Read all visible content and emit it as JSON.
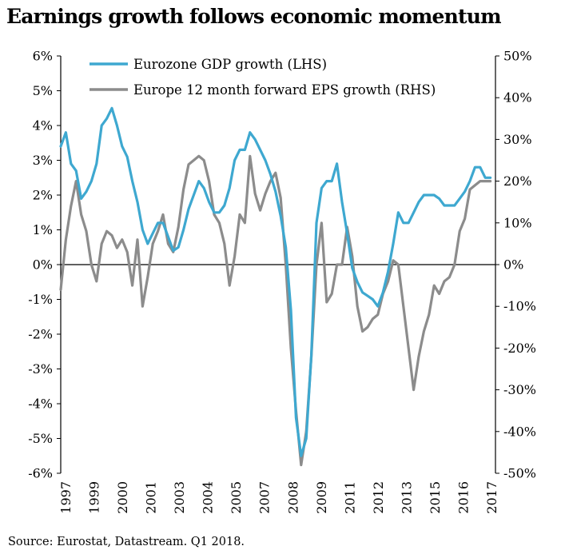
{
  "title": "Earnings growth follows economic momentum",
  "source": "Source: Eurostat, Datastream. Q1 2018.",
  "colors": {
    "gdp": "#3ea8d0",
    "eps": "#8c8c8c",
    "axis": "#000000"
  },
  "chart_data": {
    "type": "line",
    "title": "Earnings growth follows economic momentum",
    "x_tick_labels": [
      "1997",
      "1999",
      "2000",
      "2001",
      "2003",
      "2004",
      "2005",
      "2007",
      "2008",
      "2009",
      "2011",
      "2012",
      "2013",
      "2015",
      "2016",
      "2017"
    ],
    "x_range": [
      1997.0,
      2018.25
    ],
    "y_left": {
      "ylim": [
        -6,
        6
      ],
      "ticks": [
        6,
        5,
        4,
        3,
        2,
        1,
        0,
        -1,
        -2,
        -3,
        -4,
        -5,
        -6
      ],
      "tick_labels": [
        "6%",
        "5%",
        "4%",
        "3%",
        "2%",
        "1%",
        "0%",
        "-1%",
        "-2%",
        "-3%",
        "-4%",
        "-5%",
        "-6%"
      ]
    },
    "y_right": {
      "ylim": [
        -50,
        50
      ],
      "ticks": [
        50,
        40,
        30,
        20,
        10,
        0,
        -10,
        -20,
        -30,
        -40,
        -50
      ],
      "tick_labels": [
        "50%",
        "40%",
        "30%",
        "20%",
        "10%",
        "0%",
        "-10%",
        "-20%",
        "-30%",
        "-40%",
        "-50%"
      ]
    },
    "legend_placement": "top-left",
    "grid": false,
    "series": [
      {
        "name": "Eurozone GDP growth (LHS)",
        "axis": "left",
        "x": [
          1997.0,
          1997.25,
          1997.5,
          1997.75,
          1998.0,
          1998.25,
          1998.5,
          1998.75,
          1999.0,
          1999.25,
          1999.5,
          1999.75,
          2000.0,
          2000.25,
          2000.5,
          2000.75,
          2001.0,
          2001.25,
          2001.5,
          2001.75,
          2002.0,
          2002.25,
          2002.5,
          2002.75,
          2003.0,
          2003.25,
          2003.5,
          2003.75,
          2004.0,
          2004.25,
          2004.5,
          2004.75,
          2005.0,
          2005.25,
          2005.5,
          2005.75,
          2006.0,
          2006.25,
          2006.5,
          2006.75,
          2007.0,
          2007.25,
          2007.5,
          2007.75,
          2008.0,
          2008.25,
          2008.5,
          2008.75,
          2009.0,
          2009.25,
          2009.5,
          2009.75,
          2010.0,
          2010.25,
          2010.5,
          2010.75,
          2011.0,
          2011.25,
          2011.5,
          2011.75,
          2012.0,
          2012.25,
          2012.5,
          2012.75,
          2013.0,
          2013.25,
          2013.5,
          2013.75,
          2014.0,
          2014.25,
          2014.5,
          2014.75,
          2015.0,
          2015.25,
          2015.5,
          2015.75,
          2016.0,
          2016.25,
          2016.5,
          2016.75,
          2017.0,
          2017.25,
          2017.5,
          2017.75,
          2018.0
        ],
        "values": [
          3.4,
          3.8,
          2.9,
          2.7,
          1.9,
          2.1,
          2.4,
          2.9,
          4.0,
          4.2,
          4.5,
          4.0,
          3.4,
          3.1,
          2.4,
          1.8,
          1.0,
          0.6,
          0.9,
          1.2,
          1.2,
          0.8,
          0.4,
          0.5,
          1.0,
          1.6,
          2.0,
          2.4,
          2.2,
          1.8,
          1.5,
          1.5,
          1.7,
          2.2,
          3.0,
          3.3,
          3.3,
          3.8,
          3.6,
          3.3,
          3.0,
          2.6,
          2.1,
          1.4,
          0.5,
          -1.3,
          -4.4,
          -5.5,
          -5.0,
          -2.6,
          1.2,
          2.2,
          2.4,
          2.4,
          2.9,
          1.8,
          0.9,
          -0.1,
          -0.5,
          -0.8,
          -0.9,
          -1.0,
          -1.2,
          -0.8,
          -0.2,
          0.6,
          1.5,
          1.2,
          1.2,
          1.5,
          1.8,
          2.0,
          2.0,
          2.0,
          1.9,
          1.7,
          1.7,
          1.7,
          1.9,
          2.1,
          2.4,
          2.8,
          2.8,
          2.5,
          2.5
        ]
      },
      {
        "name": "Europe 12 month forward EPS growth (RHS)",
        "axis": "right",
        "x": [
          1997.0,
          1997.25,
          1997.5,
          1997.75,
          1998.0,
          1998.25,
          1998.5,
          1998.75,
          1999.0,
          1999.25,
          1999.5,
          1999.75,
          2000.0,
          2000.25,
          2000.5,
          2000.75,
          2001.0,
          2001.25,
          2001.5,
          2001.75,
          2002.0,
          2002.25,
          2002.5,
          2002.75,
          2003.0,
          2003.25,
          2003.5,
          2003.75,
          2004.0,
          2004.25,
          2004.5,
          2004.75,
          2005.0,
          2005.25,
          2005.5,
          2005.75,
          2006.0,
          2006.25,
          2006.5,
          2006.75,
          2007.0,
          2007.25,
          2007.5,
          2007.75,
          2008.0,
          2008.25,
          2008.5,
          2008.75,
          2009.0,
          2009.25,
          2009.5,
          2009.75,
          2010.0,
          2010.25,
          2010.5,
          2010.75,
          2011.0,
          2011.25,
          2011.5,
          2011.75,
          2012.0,
          2012.25,
          2012.5,
          2012.75,
          2013.0,
          2013.25,
          2013.5,
          2013.75,
          2014.0,
          2014.25,
          2014.5,
          2014.75,
          2015.0,
          2015.25,
          2015.5,
          2015.75,
          2016.0,
          2016.25,
          2016.5,
          2016.75,
          2017.0,
          2017.25,
          2017.5,
          2017.75,
          2018.0
        ],
        "values": [
          -6,
          6,
          14,
          20,
          12,
          8,
          0,
          -4,
          5,
          8,
          7,
          4,
          6,
          3,
          -5,
          6,
          -10,
          -3,
          5,
          8,
          12,
          5,
          3,
          9,
          18,
          24,
          25,
          26,
          25,
          20,
          12,
          10,
          5,
          -5,
          2,
          12,
          10,
          26,
          17,
          13,
          17,
          20,
          22,
          16,
          0,
          -20,
          -35,
          -48,
          -40,
          -22,
          0,
          10,
          -9,
          -7,
          0,
          0,
          9,
          2,
          -10,
          -16,
          -15,
          -13,
          -12,
          -7,
          -4,
          1,
          0,
          -10,
          -20,
          -30,
          -22,
          -16,
          -12,
          -5,
          -7,
          -4,
          -3,
          0,
          8,
          11,
          18,
          19,
          20,
          20,
          20
        ]
      }
    ]
  }
}
